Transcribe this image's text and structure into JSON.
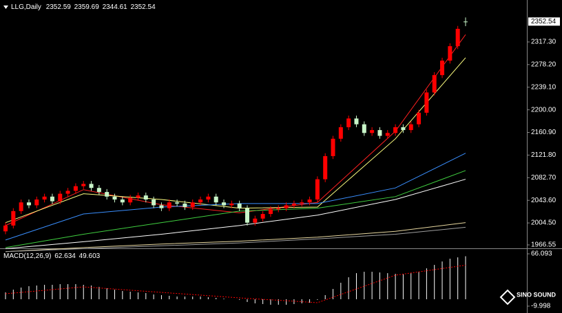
{
  "chart_data": [
    {
      "type": "candlestick",
      "title": "LLG,Daily",
      "open": [
        1990,
        2000,
        2025,
        2040,
        2035,
        2045,
        2050,
        2042,
        2055,
        2060,
        2068,
        2072,
        2065,
        2058,
        2050,
        2045,
        2040,
        2048,
        2052,
        2045,
        2035,
        2030,
        2040,
        2038,
        2032,
        2040,
        2045,
        2050,
        2040,
        2035,
        2038,
        2030,
        2005,
        2012,
        2020,
        2028,
        2030,
        2035,
        2038,
        2040,
        2045,
        2080,
        2120,
        2150,
        2170,
        2185,
        2175,
        2160,
        2165,
        2155,
        2160,
        2170,
        2165,
        2175,
        2195,
        2230,
        2260,
        2285,
        2310,
        2352.59
      ],
      "high": [
        2005,
        2030,
        2045,
        2045,
        2050,
        2055,
        2055,
        2060,
        2065,
        2073,
        2077,
        2077,
        2070,
        2063,
        2055,
        2050,
        2053,
        2057,
        2057,
        2050,
        2040,
        2045,
        2045,
        2043,
        2045,
        2050,
        2055,
        2055,
        2045,
        2043,
        2043,
        2035,
        2017,
        2025,
        2033,
        2035,
        2040,
        2043,
        2045,
        2050,
        2085,
        2125,
        2155,
        2175,
        2190,
        2190,
        2180,
        2170,
        2170,
        2165,
        2175,
        2175,
        2180,
        2200,
        2235,
        2265,
        2290,
        2315,
        2345,
        2359.69
      ],
      "low": [
        1985,
        1995,
        2020,
        2030,
        2030,
        2040,
        2037,
        2037,
        2050,
        2055,
        2063,
        2060,
        2053,
        2045,
        2040,
        2035,
        2035,
        2043,
        2040,
        2030,
        2025,
        2025,
        2033,
        2027,
        2027,
        2035,
        2040,
        2035,
        2030,
        2030,
        2025,
        2000,
        2000,
        2007,
        2015,
        2023,
        2025,
        2030,
        2033,
        2035,
        2040,
        2075,
        2115,
        2145,
        2165,
        2170,
        2155,
        2155,
        2150,
        2150,
        2155,
        2160,
        2160,
        2170,
        2190,
        2225,
        2255,
        2280,
        2305,
        2344.61
      ],
      "close": [
        2000,
        2025,
        2040,
        2035,
        2045,
        2050,
        2042,
        2055,
        2060,
        2068,
        2072,
        2065,
        2058,
        2050,
        2045,
        2040,
        2048,
        2052,
        2045,
        2035,
        2030,
        2040,
        2038,
        2032,
        2040,
        2045,
        2050,
        2040,
        2035,
        2038,
        2030,
        2005,
        2012,
        2020,
        2028,
        2030,
        2035,
        2038,
        2040,
        2045,
        2080,
        2120,
        2150,
        2170,
        2185,
        2175,
        2160,
        2165,
        2155,
        2160,
        2170,
        2165,
        2175,
        2195,
        2230,
        2260,
        2285,
        2310,
        2340,
        2352.54
      ],
      "up_color": "#ff0000",
      "down_color": "#c8f5c8",
      "lines": [
        {
          "color": "#ff2020",
          "x": [
            0,
            10,
            20,
            30,
            40,
            50,
            59
          ],
          "values": [
            2000,
            2062,
            2036,
            2022,
            2040,
            2163,
            2330
          ]
        },
        {
          "color": "#ffff80",
          "x": [
            0,
            10,
            20,
            30,
            40,
            50,
            59
          ],
          "values": [
            2005,
            2055,
            2045,
            2030,
            2032,
            2150,
            2290
          ]
        },
        {
          "color": "#3a8fff",
          "x": [
            0,
            10,
            20,
            30,
            40,
            50,
            59
          ],
          "values": [
            1975,
            2020,
            2032,
            2038,
            2038,
            2065,
            2125
          ]
        },
        {
          "color": "#40d040",
          "x": [
            0,
            10,
            20,
            30,
            40,
            50,
            59
          ],
          "values": [
            1962,
            1985,
            2005,
            2025,
            2030,
            2050,
            2095
          ]
        },
        {
          "color": "#ffffff",
          "x": [
            0,
            10,
            20,
            30,
            40,
            50,
            59
          ],
          "values": [
            1960,
            1972,
            1985,
            2000,
            2018,
            2045,
            2080
          ]
        },
        {
          "color": "#e8d8a0",
          "x": [
            0,
            10,
            20,
            30,
            40,
            50,
            59
          ],
          "values": [
            1955,
            1962,
            1968,
            1973,
            1980,
            1990,
            2005
          ]
        },
        {
          "color": "#a0a0a0",
          "x": [
            0,
            10,
            20,
            30,
            40,
            50,
            59
          ],
          "values": [
            1955,
            1960,
            1965,
            1970,
            1977,
            1985,
            1997
          ]
        }
      ],
      "ylim": [
        1961.8,
        2389.8
      ],
      "yticks": [
        {
          "value": 2317.3,
          "label": "2317.30"
        },
        {
          "value": 2278.2,
          "label": "2278.20"
        },
        {
          "value": 2239.1,
          "label": "2239.10"
        },
        {
          "value": 2200,
          "label": "2200.00"
        },
        {
          "value": 2160.9,
          "label": "2160.90"
        },
        {
          "value": 2121.8,
          "label": "2121.80"
        },
        {
          "value": 2082.7,
          "label": "2082.70"
        },
        {
          "value": 2043.6,
          "label": "2043.60"
        },
        {
          "value": 2004.5,
          "label": "2004.50"
        },
        1966.55
      ]
    },
    {
      "type": "macd",
      "title": "MACD(12,26,9)",
      "values": [
        10,
        14,
        17,
        19,
        20,
        21,
        21,
        22,
        22,
        22,
        21,
        20,
        18,
        16,
        14,
        12,
        11,
        10,
        9,
        7,
        6,
        5,
        4,
        4,
        4,
        4,
        3,
        2,
        1,
        0,
        -1,
        -4,
        -6,
        -7,
        -8,
        -8,
        -8,
        -7,
        -6,
        -5,
        -1,
        6,
        15,
        24,
        32,
        38,
        40,
        40,
        39,
        38,
        37,
        37,
        38,
        40,
        45,
        50,
        55,
        59,
        61,
        62.634
      ],
      "color": "#ffffff",
      "signal": {
        "color": "#ff0000",
        "x": [
          0,
          10,
          20,
          30,
          40,
          50,
          59
        ],
        "values": [
          8,
          18,
          10,
          2,
          -5,
          35,
          49.603
        ]
      },
      "ylim": [
        -9.998,
        66.093
      ],
      "yticks": [
        66.093,
        -9.998
      ]
    }
  ]
}
